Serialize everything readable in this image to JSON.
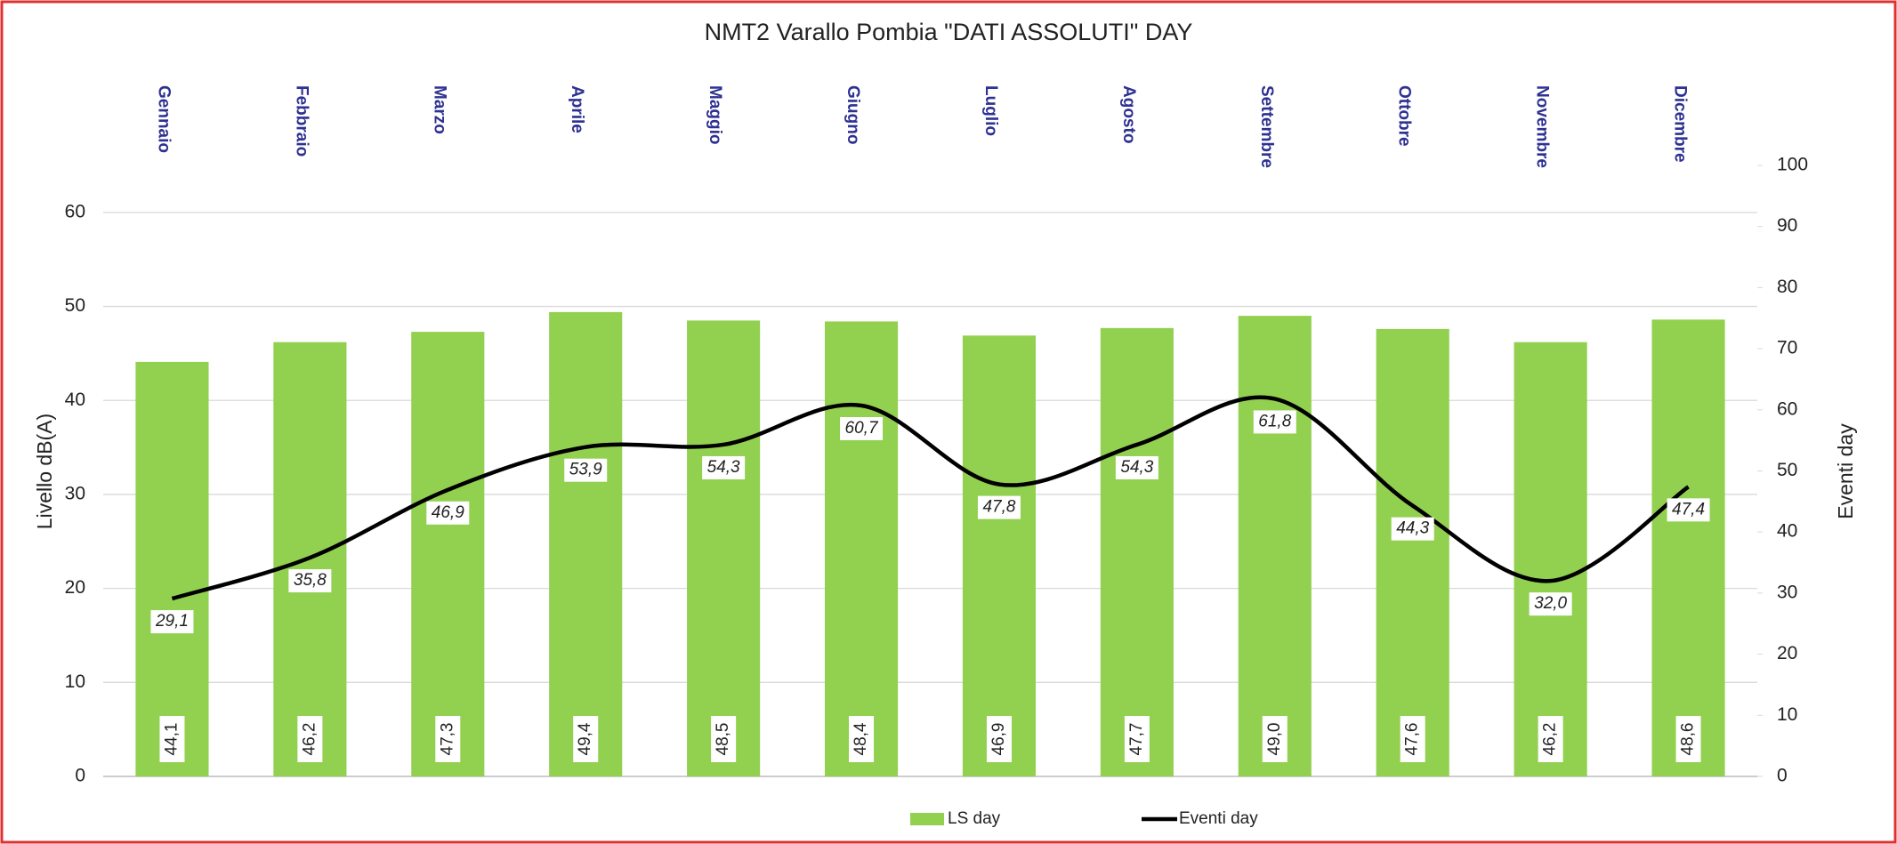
{
  "chart_data": {
    "type": "bar",
    "title": "NMT2 Varallo Pombia \"DATI ASSOLUTI\" DAY",
    "ylabel": "Livello dB(A)",
    "y2label": "Eventi day",
    "categories": [
      "Gennaio",
      "Febbraio",
      "Marzo",
      "Aprile",
      "Maggio",
      "Giugno",
      "Luglio",
      "Agosto",
      "Settembre",
      "Ottobre",
      "Novembre",
      "Dicembre"
    ],
    "series": [
      {
        "name": "LS day",
        "type": "bar",
        "color": "#92d050",
        "values": [
          44.1,
          46.2,
          47.3,
          49.4,
          48.5,
          48.4,
          46.9,
          47.7,
          49.0,
          47.6,
          46.2,
          48.6
        ],
        "value_labels": [
          "44,1",
          "46,2",
          "47,3",
          "49,4",
          "48,5",
          "48,4",
          "46,9",
          "47,7",
          "49,0",
          "47,6",
          "46,2",
          "48,6"
        ]
      },
      {
        "name": "Eventi day",
        "type": "line",
        "axis": "y2",
        "color": "#000000",
        "values": [
          29.1,
          35.8,
          46.9,
          53.9,
          54.3,
          60.7,
          47.8,
          54.3,
          61.8,
          44.3,
          32.0,
          47.4
        ],
        "value_labels": [
          "29,1",
          "35,8",
          "46,9",
          "53,9",
          "54,3",
          "60,7",
          "47,8",
          "54,3",
          "61,8",
          "44,3",
          "32,0",
          "47,4"
        ]
      }
    ],
    "ylim": [
      0,
      65
    ],
    "yticks": [
      0,
      10,
      20,
      30,
      40,
      50,
      60
    ],
    "y2lim": [
      0,
      100
    ],
    "y2ticks": [
      0,
      10,
      20,
      30,
      40,
      50,
      60,
      70,
      80,
      90,
      100
    ],
    "grid": true,
    "legend": "bottom"
  }
}
